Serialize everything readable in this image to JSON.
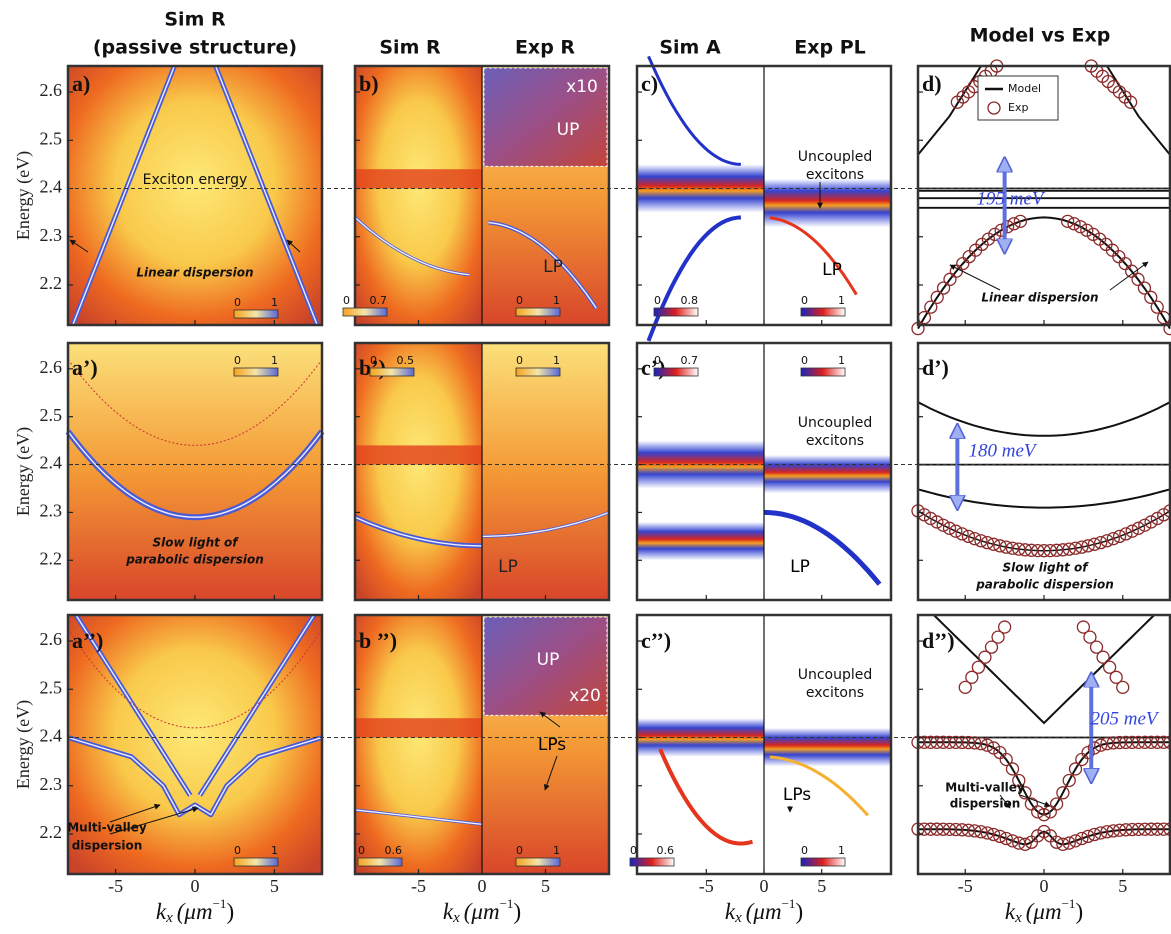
{
  "headers": [
    "Sim R",
    "(passive structure)",
    "Sim R",
    "Exp R",
    "Sim A",
    "Exp PL",
    "Model vs Exp"
  ],
  "y_label": "Energy (eV)",
  "x_label": {
    "symbol": "k",
    "sub": "x",
    "unit": "(μm",
    "sup": "−1",
    "close": ")"
  },
  "ylim": [
    2.117,
    2.654
  ],
  "yticks": [
    2.2,
    2.3,
    2.4,
    2.5,
    2.6
  ],
  "xlims": [
    [
      -8,
      8
    ],
    [
      -10,
      10
    ],
    [
      -11,
      11
    ],
    [
      -8,
      8
    ]
  ],
  "xticks": [
    -5,
    0,
    5
  ],
  "exciton_energy": 2.4,
  "legend": [
    "Model",
    "Exp"
  ],
  "panels": [
    {
      "label": "a)",
      "annotations": [
        "Exciton energy",
        "Linear dispersion"
      ],
      "colorbars": [
        [
          0,
          1
        ]
      ]
    },
    {
      "label": "b)",
      "annotations": [
        "x10",
        "UP",
        "LP"
      ],
      "colorbars": [
        [
          0,
          0.7
        ],
        [
          0,
          1
        ]
      ]
    },
    {
      "label": "c)",
      "annotations": [
        "Uncoupled",
        "excitons",
        "LP"
      ],
      "colorbars": [
        [
          0,
          0.8
        ],
        [
          0,
          1
        ]
      ]
    },
    {
      "label": "d)",
      "annotations": [
        "195 meV",
        "Linear dispersion"
      ],
      "colorbars": []
    },
    {
      "label": "a’)",
      "annotations": [
        "Slow light of",
        "parabolic dispersion"
      ],
      "colorbars": [
        [
          0,
          1
        ]
      ]
    },
    {
      "label": "b’)",
      "annotations": [
        "LP"
      ],
      "colorbars": [
        [
          0,
          0.5
        ],
        [
          0,
          1
        ]
      ]
    },
    {
      "label": "c’)",
      "annotations": [
        "Uncoupled",
        "excitons",
        "LP"
      ],
      "colorbars": [
        [
          0,
          0.7
        ],
        [
          0,
          1
        ]
      ]
    },
    {
      "label": "d’)",
      "annotations": [
        "180 meV",
        "Slow light of",
        "parabolic dispersion"
      ],
      "colorbars": []
    },
    {
      "label": "a’’)",
      "annotations": [
        "Multi-valley",
        "dispersion"
      ],
      "colorbars": [
        [
          0,
          1
        ]
      ]
    },
    {
      "label": "b ’’)",
      "annotations": [
        "UP",
        "x20",
        "LPs"
      ],
      "colorbars": [
        [
          0,
          0.6
        ],
        [
          0,
          1
        ]
      ]
    },
    {
      "label": "c’’)",
      "annotations": [
        "Uncoupled",
        "excitons",
        "LPs"
      ],
      "colorbars": [
        [
          0,
          0.6
        ],
        [
          0,
          1
        ]
      ]
    },
    {
      "label": "d’’)",
      "annotations": [
        "205 meV",
        "Multi-valley",
        "dispersion"
      ],
      "colorbars": []
    }
  ]
}
